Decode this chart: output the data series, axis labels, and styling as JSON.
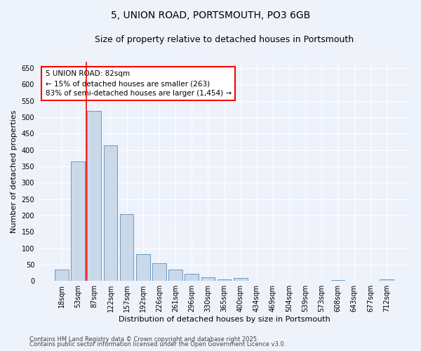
{
  "title": "5, UNION ROAD, PORTSMOUTH, PO3 6GB",
  "subtitle": "Size of property relative to detached houses in Portsmouth",
  "xlabel": "Distribution of detached houses by size in Portsmouth",
  "ylabel": "Number of detached properties",
  "categories": [
    "18sqm",
    "53sqm",
    "87sqm",
    "122sqm",
    "157sqm",
    "192sqm",
    "226sqm",
    "261sqm",
    "296sqm",
    "330sqm",
    "365sqm",
    "400sqm",
    "434sqm",
    "469sqm",
    "504sqm",
    "539sqm",
    "573sqm",
    "608sqm",
    "643sqm",
    "677sqm",
    "712sqm"
  ],
  "values": [
    35,
    365,
    520,
    415,
    205,
    83,
    55,
    35,
    22,
    12,
    5,
    10,
    1,
    1,
    1,
    0,
    0,
    3,
    0,
    1,
    4
  ],
  "bar_color": "#c9d9ea",
  "bar_edge_color": "#5b8db8",
  "vline_x": 1.5,
  "vline_color": "red",
  "annotation_text": "5 UNION ROAD: 82sqm\n← 15% of detached houses are smaller (263)\n83% of semi-detached houses are larger (1,454) →",
  "annotation_box_color": "white",
  "annotation_box_edge_color": "red",
  "ylim": [
    0,
    670
  ],
  "yticks": [
    0,
    50,
    100,
    150,
    200,
    250,
    300,
    350,
    400,
    450,
    500,
    550,
    600,
    650
  ],
  "background_color": "#eef2fb",
  "plot_background": "#eef2fb",
  "grid_color": "white",
  "footer_line1": "Contains HM Land Registry data © Crown copyright and database right 2025.",
  "footer_line2": "Contains public sector information licensed under the Open Government Licence v3.0.",
  "title_fontsize": 10,
  "subtitle_fontsize": 9,
  "ylabel_fontsize": 8,
  "xlabel_fontsize": 8,
  "tick_fontsize": 7,
  "annotation_fontsize": 7.5,
  "footer_fontsize": 6
}
